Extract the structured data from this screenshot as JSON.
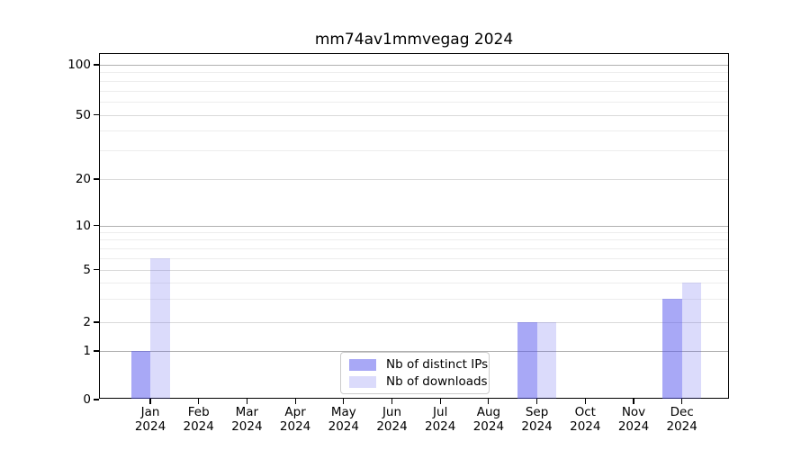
{
  "chart_data": {
    "type": "bar",
    "title": "mm74av1mmvegag 2024",
    "categories": [
      "Jan 2024",
      "Feb 2024",
      "Mar 2024",
      "Apr 2024",
      "May 2024",
      "Jun 2024",
      "Jul 2024",
      "Aug 2024",
      "Sep 2024",
      "Oct 2024",
      "Nov 2024",
      "Dec 2024"
    ],
    "x_tick_line1": [
      "Jan",
      "Feb",
      "Mar",
      "Apr",
      "May",
      "Jun",
      "Jul",
      "Aug",
      "Sep",
      "Oct",
      "Nov",
      "Dec"
    ],
    "x_tick_line2": "2024",
    "series": [
      {
        "name": "Nb of distinct IPs",
        "color": "#a8a8f4",
        "fill": "rgba(85,85,238,0.51)",
        "values": [
          1,
          0,
          0,
          0,
          0,
          0,
          0,
          0,
          2,
          0,
          0,
          3
        ]
      },
      {
        "name": "Nb of downloads",
        "color": "#dcdcf8",
        "fill": "rgba(85,85,238,0.21)",
        "values": [
          6,
          0,
          0,
          0,
          0,
          0,
          0,
          0,
          2,
          0,
          0,
          4
        ]
      }
    ],
    "yscale": "symlog",
    "y_ticks": [
      0,
      1,
      2,
      5,
      10,
      20,
      50,
      100
    ],
    "y_minor_ticks": [
      3,
      4,
      6,
      7,
      8,
      9,
      30,
      40,
      60,
      70,
      80,
      90
    ],
    "ylim": [
      0,
      117
    ],
    "xlabel": "",
    "ylabel": "",
    "grid": true,
    "legend_position": "lower center"
  }
}
